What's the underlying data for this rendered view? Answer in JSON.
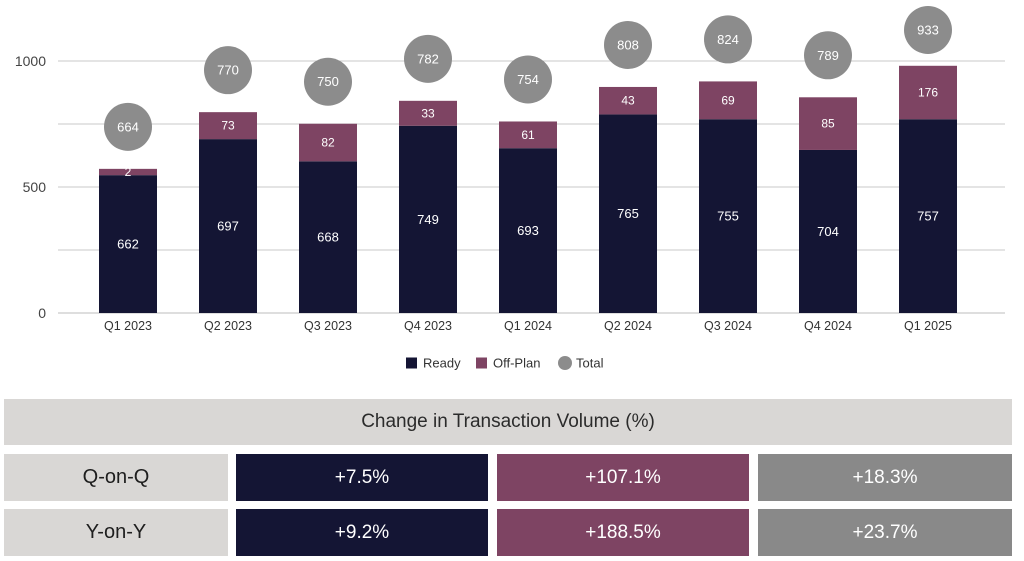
{
  "chart_data": {
    "type": "bar",
    "stacked": true,
    "categories": [
      "Q1 2023",
      "Q2 2023",
      "Q3 2023",
      "Q4 2023",
      "Q1 2024",
      "Q2 2024",
      "Q3 2024",
      "Q4 2024",
      "Q1 2025"
    ],
    "series": [
      {
        "name": "Ready",
        "color": "#141534",
        "values": [
          662,
          697,
          668,
          749,
          693,
          765,
          755,
          704,
          757
        ]
      },
      {
        "name": "Off-Plan",
        "color": "#7e4463",
        "values": [
          2,
          73,
          82,
          33,
          61,
          43,
          69,
          85,
          176
        ]
      }
    ],
    "bar_values": {
      "ready": [
        547,
        690,
        602,
        743,
        654,
        788,
        769,
        647,
        769
      ],
      "offplan": [
        25,
        107,
        149,
        99,
        106,
        109,
        150,
        209,
        212
      ]
    },
    "totals": {
      "name": "Total",
      "color": "#8c8c8c",
      "values": [
        664,
        770,
        750,
        782,
        754,
        808,
        824,
        789,
        933
      ]
    },
    "yticks": [
      0,
      500,
      1000
    ],
    "ylim": [
      0,
      1130
    ],
    "grid": true,
    "legend": {
      "position": "bottom",
      "items": [
        {
          "label": "Ready",
          "shape": "square",
          "color": "#141534"
        },
        {
          "label": "Off-Plan",
          "shape": "square",
          "color": "#7e4463"
        },
        {
          "label": "Total",
          "shape": "circle",
          "color": "#8c8c8c"
        }
      ]
    }
  },
  "table": {
    "title": "Change in Transaction Volume (%)",
    "rows": [
      {
        "label": "Q-on-Q",
        "ready": "+7.5%",
        "offplan": "+107.1%",
        "total": "+18.3%"
      },
      {
        "label": "Y-on-Y",
        "ready": "+9.2%",
        "offplan": "+188.5%",
        "total": "+23.7%"
      }
    ]
  }
}
